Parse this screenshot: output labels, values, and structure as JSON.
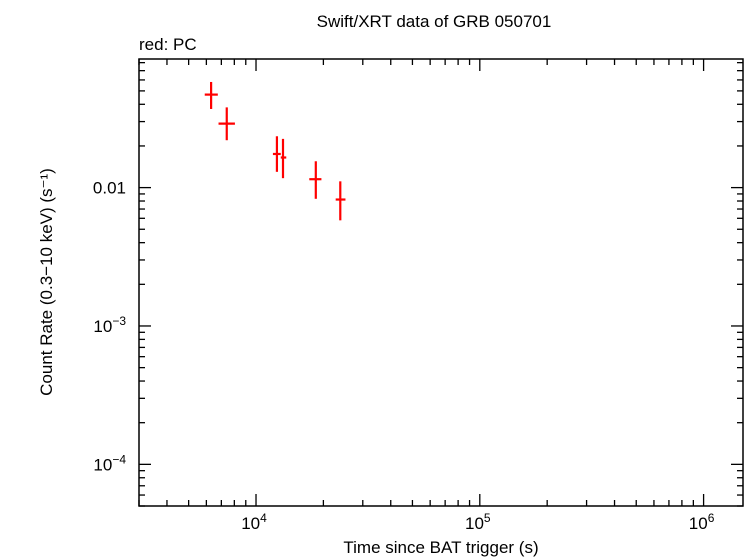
{
  "chart_data": {
    "type": "scatter",
    "title": "Swift/XRT data of GRB 050701",
    "subtitle": "red: PC",
    "xlabel": "Time since BAT trigger (s)",
    "ylabel": "Count Rate (0.3−10 keV) (s⁻¹)",
    "x_scale": "log",
    "y_scale": "log",
    "xlim": [
      3000,
      1500000
    ],
    "ylim": [
      5e-05,
      0.085
    ],
    "x_ticks": [
      {
        "base": "10",
        "exp": "4",
        "value": 10000
      },
      {
        "base": "10",
        "exp": "5",
        "value": 100000
      },
      {
        "base": "10",
        "exp": "6",
        "value": 1000000
      }
    ],
    "y_ticks": [
      {
        "text": "0.01",
        "value": 0.01
      },
      {
        "base": "10",
        "exp": "−3",
        "value": 0.001
      },
      {
        "base": "10",
        "exp": "−4",
        "value": 0.0001
      }
    ],
    "grid": false,
    "series": [
      {
        "name": "PC",
        "color": "#ff0000",
        "points": [
          {
            "x": 6300,
            "x_lo": 5900,
            "x_hi": 6750,
            "y": 0.047,
            "y_lo": 0.037,
            "y_hi": 0.058
          },
          {
            "x": 7400,
            "x_lo": 6800,
            "x_hi": 8050,
            "y": 0.029,
            "y_lo": 0.022,
            "y_hi": 0.038
          },
          {
            "x": 12400,
            "x_lo": 11900,
            "x_hi": 12900,
            "y": 0.0175,
            "y_lo": 0.013,
            "y_hi": 0.0235
          },
          {
            "x": 13200,
            "x_lo": 12900,
            "x_hi": 13650,
            "y": 0.0165,
            "y_lo": 0.0117,
            "y_hi": 0.0225
          },
          {
            "x": 18500,
            "x_lo": 17300,
            "x_hi": 19600,
            "y": 0.0115,
            "y_lo": 0.0083,
            "y_hi": 0.0155
          },
          {
            "x": 23800,
            "x_lo": 22700,
            "x_hi": 25100,
            "y": 0.0082,
            "y_lo": 0.0058,
            "y_hi": 0.0111
          }
        ]
      }
    ]
  }
}
